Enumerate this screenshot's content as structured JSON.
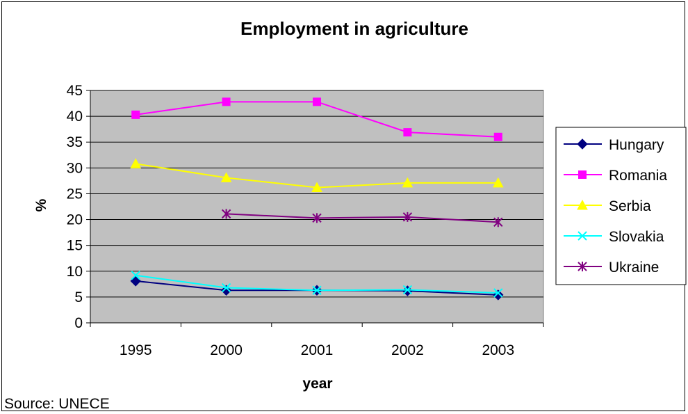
{
  "chart_data": {
    "type": "line",
    "title": "Employment in agriculture",
    "xlabel": "year",
    "ylabel": "%",
    "categories": [
      "1995",
      "2000",
      "2001",
      "2002",
      "2003"
    ],
    "ylim": [
      0,
      45
    ],
    "yticks": [
      0,
      5,
      10,
      15,
      20,
      25,
      30,
      35,
      40,
      45
    ],
    "grid": true,
    "legend_position": "right",
    "plot_background": "#c0c0c0",
    "series": [
      {
        "name": "Hungary",
        "color": "#000080",
        "marker": "diamond",
        "values": [
          8.1,
          6.3,
          6.3,
          6.2,
          5.4
        ]
      },
      {
        "name": "Romania",
        "color": "#ff00ff",
        "marker": "square",
        "values": [
          40.3,
          42.8,
          42.8,
          36.9,
          36.0
        ]
      },
      {
        "name": "Serbia",
        "color": "#ffff00",
        "marker": "triangle",
        "values": [
          30.8,
          28.1,
          26.2,
          27.1,
          27.1
        ]
      },
      {
        "name": "Slovakia",
        "color": "#00ffff",
        "marker": "x",
        "values": [
          9.2,
          6.8,
          6.3,
          6.4,
          5.8
        ]
      },
      {
        "name": "Ukraine",
        "color": "#800080",
        "marker": "star",
        "values": [
          null,
          21.1,
          20.3,
          20.5,
          19.5
        ]
      }
    ]
  },
  "source_note": "Source: UNECE"
}
